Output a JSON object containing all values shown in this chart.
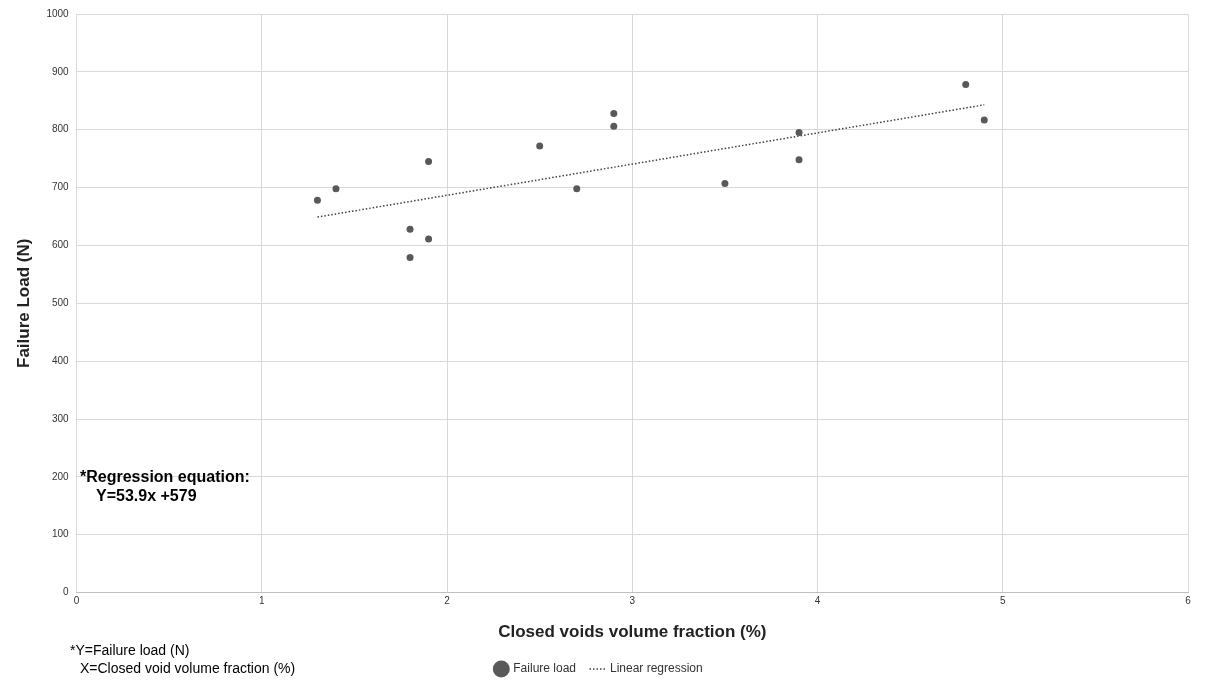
{
  "chart_data": {
    "type": "scatter",
    "xlabel": "Closed voids volume fraction (%)",
    "ylabel": "Failure Load (N)",
    "xlim": [
      0,
      6
    ],
    "xticks": [
      0,
      1,
      2,
      3,
      4,
      5,
      6
    ],
    "ylim": [
      0,
      1000
    ],
    "yticks": [
      0,
      100,
      200,
      300,
      400,
      500,
      600,
      700,
      800,
      900,
      1000
    ],
    "grid": true,
    "legend": "bottom",
    "marker": "circle",
    "series": [
      {
        "name": "Failure load",
        "color": "#595959",
        "x": [
          1.3,
          1.4,
          1.8,
          1.8,
          1.9,
          1.9,
          2.5,
          2.7,
          2.9,
          2.9,
          3.5,
          3.9,
          3.9,
          4.8,
          4.9
        ],
        "values": [
          678,
          698,
          628,
          579,
          745,
          611,
          772,
          698,
          828,
          806,
          707,
          795,
          748,
          878,
          817
        ]
      },
      {
        "name": "Linear regression",
        "type": "line",
        "color": "#404040",
        "line_style": "dotted",
        "marker": "none",
        "x": [
          1.3,
          4.9
        ],
        "values": [
          649,
          843
        ]
      }
    ],
    "annotations": [
      "*Regression equation:",
      "Y=53.9x +579",
      "*Y=Failure load (N)",
      "X=Closed void volume fraction (%)"
    ]
  }
}
